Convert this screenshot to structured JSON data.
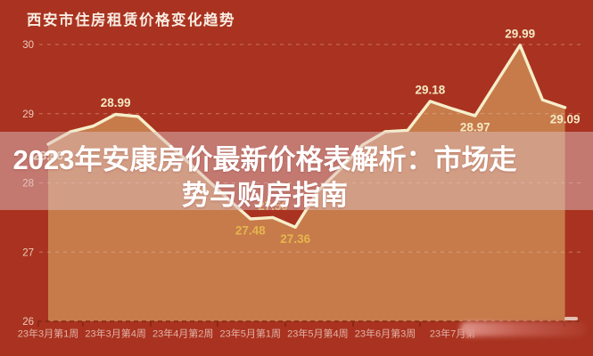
{
  "header": {
    "title": "西安市住房租赁价格变化趋势"
  },
  "overlay": {
    "headline_full": "2023年安康房价最新价格表解析：市场走势与购房指南",
    "lines": [
      "2023年安康房价最新价格表解析：市场走",
      "势与购房指南"
    ]
  },
  "colors": {
    "background": "#a93320",
    "area_fill": "#c77b4a",
    "line": "#f6eecb",
    "label_cream": "#f3e9c4",
    "label_gold": "#e5b64e",
    "grid": "#f0c5b6",
    "axis": "#7e2512",
    "y_label": "#edc9bc",
    "x_label": "#e2b2a6",
    "overlay_band": "rgba(222,192,192,0.5)",
    "overlay_text": "#ffffff"
  },
  "chart_data": {
    "type": "area",
    "title": "西安市住房租赁价格变化趋势",
    "x_unit": "week",
    "x_tick_labels": [
      "23年3月第1周",
      "23年3月第4周",
      "23年4月第2周",
      "23年5月第1周",
      "23年5月第4周",
      "23年6月第3周",
      "23年7月第"
    ],
    "x_label_every": 3,
    "y_ticks": [
      30,
      29,
      28,
      27,
      26
    ],
    "ylim": [
      26,
      30.5
    ],
    "grid": "dashed-horizontal",
    "legend": "none",
    "values": [
      28.56,
      28.74,
      28.82,
      28.99,
      28.96,
      28.66,
      28.37,
      28.07,
      27.77,
      27.48,
      27.5,
      27.36,
      27.88,
      28.2,
      28.55,
      28.74,
      28.76,
      29.18,
      29.07,
      28.97,
      29.48,
      29.99,
      29.2,
      29.09
    ],
    "point_labels": [
      {
        "i": 0,
        "text": "28.56",
        "pos": "below",
        "tone": "cream"
      },
      {
        "i": 3,
        "text": "28.99",
        "pos": "above",
        "tone": "cream"
      },
      {
        "i": 9,
        "text": "27.48",
        "pos": "below",
        "tone": "gold"
      },
      {
        "i": 10,
        "text": "27.50",
        "pos": "above",
        "tone": "gold"
      },
      {
        "i": 11,
        "text": "27.36",
        "pos": "below",
        "tone": "gold"
      },
      {
        "i": 17,
        "text": "29.18",
        "pos": "above",
        "tone": "cream"
      },
      {
        "i": 19,
        "text": "28.97",
        "pos": "below",
        "tone": "cream"
      },
      {
        "i": 21,
        "text": "29.99",
        "pos": "above",
        "tone": "cream"
      },
      {
        "i": 23,
        "text": "29.09",
        "pos": "below",
        "tone": "cream"
      }
    ]
  }
}
